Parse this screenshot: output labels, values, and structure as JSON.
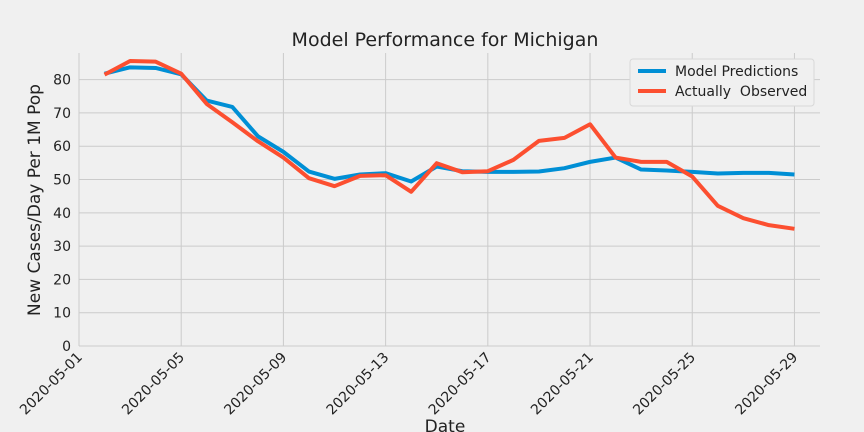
{
  "chart_data": {
    "type": "line",
    "title": "Model Performance for Michigan",
    "xlabel": "Date",
    "ylabel": "New Cases/Day Per 1M Pop",
    "xlim": [
      "2020-05-01",
      "2020-05-30"
    ],
    "ylim": [
      0,
      88
    ],
    "x_ticks": [
      "2020-05-01",
      "2020-05-05",
      "2020-05-09",
      "2020-05-13",
      "2020-05-17",
      "2020-05-21",
      "2020-05-25",
      "2020-05-29"
    ],
    "y_ticks": [
      0,
      10,
      20,
      30,
      40,
      50,
      60,
      70,
      80
    ],
    "grid": true,
    "legend_position": "top-right",
    "x": [
      "2020-05-02",
      "2020-05-03",
      "2020-05-04",
      "2020-05-05",
      "2020-05-06",
      "2020-05-07",
      "2020-05-08",
      "2020-05-09",
      "2020-05-10",
      "2020-05-11",
      "2020-05-12",
      "2020-05-13",
      "2020-05-14",
      "2020-05-15",
      "2020-05-16",
      "2020-05-17",
      "2020-05-18",
      "2020-05-19",
      "2020-05-20",
      "2020-05-21",
      "2020-05-22",
      "2020-05-23",
      "2020-05-24",
      "2020-05-25",
      "2020-05-26",
      "2020-05-27",
      "2020-05-28",
      "2020-05-29"
    ],
    "series": [
      {
        "name": "Model Predictions",
        "color": "#008fd5",
        "values": [
          81.8,
          83.7,
          83.5,
          81.6,
          73.7,
          71.8,
          63.0,
          58.3,
          52.4,
          50.2,
          51.5,
          51.9,
          49.4,
          53.9,
          52.5,
          52.3,
          52.3,
          52.4,
          53.4,
          55.3,
          56.6,
          53.0,
          52.7,
          52.3,
          51.8,
          52.0,
          52.0,
          51.5
        ]
      },
      {
        "name": "Actually  Observed",
        "color": "#fc4f30",
        "values": [
          81.5,
          85.6,
          85.4,
          81.8,
          72.7,
          67.2,
          61.5,
          56.6,
          50.4,
          48.0,
          51.1,
          51.3,
          46.3,
          54.9,
          52.2,
          52.5,
          55.9,
          61.6,
          62.5,
          66.6,
          56.6,
          55.3,
          55.3,
          50.9,
          42.1,
          38.4,
          36.3,
          35.2
        ]
      }
    ]
  }
}
